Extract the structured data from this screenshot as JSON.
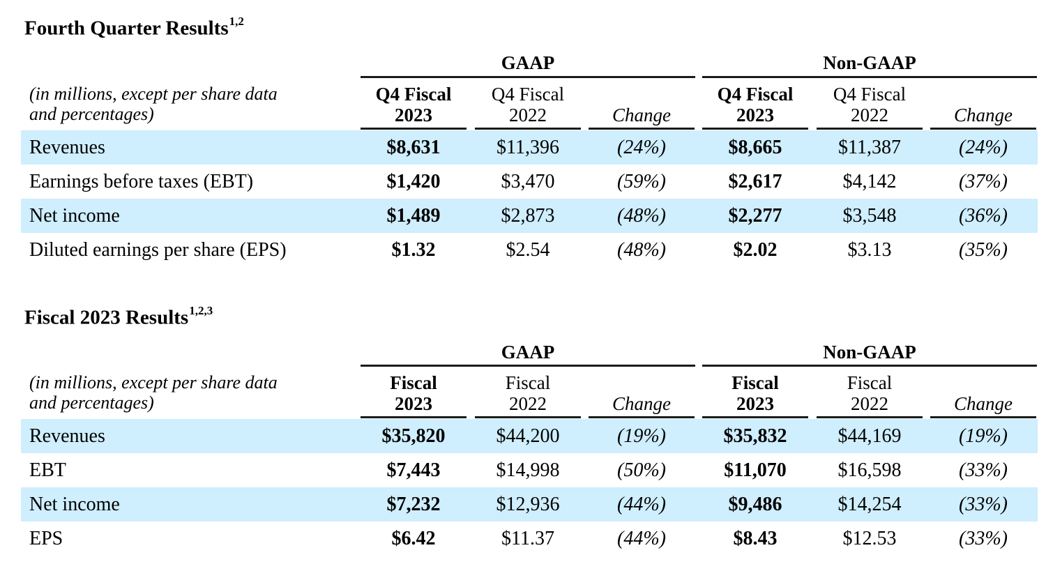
{
  "sections": [
    {
      "title": "Fourth Quarter Results",
      "footnotes": "1,2",
      "description_line1": "(in millions, except per share data",
      "description_line2": "and percentages)",
      "groups": {
        "gaap": "GAAP",
        "non_gaap": "Non-GAAP"
      },
      "headers": {
        "gaap_current": {
          "line1": "Q4 Fiscal",
          "line2": "2023"
        },
        "gaap_prior": {
          "line1": "Q4 Fiscal",
          "line2": "2022"
        },
        "gaap_change": {
          "line1": "",
          "line2": "Change"
        },
        "ng_current": {
          "line1": "Q4 Fiscal",
          "line2": "2023"
        },
        "ng_prior": {
          "line1": "Q4 Fiscal",
          "line2": "2022"
        },
        "ng_change": {
          "line1": "",
          "line2": "Change"
        }
      },
      "rows": [
        {
          "label": "Revenues",
          "gaap_current": "$8,631",
          "gaap_prior": "$11,396",
          "gaap_change": "(24%)",
          "ng_current": "$8,665",
          "ng_prior": "$11,387",
          "ng_change": "(24%)"
        },
        {
          "label": "Earnings before taxes (EBT)",
          "gaap_current": "$1,420",
          "gaap_prior": "$3,470",
          "gaap_change": "(59%)",
          "ng_current": "$2,617",
          "ng_prior": "$4,142",
          "ng_change": "(37%)"
        },
        {
          "label": "Net income",
          "gaap_current": "$1,489",
          "gaap_prior": "$2,873",
          "gaap_change": "(48%)",
          "ng_current": "$2,277",
          "ng_prior": "$3,548",
          "ng_change": "(36%)"
        },
        {
          "label": "Diluted earnings per share (EPS)",
          "gaap_current": "$1.32",
          "gaap_prior": "$2.54",
          "gaap_change": "(48%)",
          "ng_current": "$2.02",
          "ng_prior": "$3.13",
          "ng_change": "(35%)"
        }
      ]
    },
    {
      "title": "Fiscal 2023 Results",
      "footnotes": "1,2,3",
      "description_line1": "(in millions, except per share data",
      "description_line2": "and percentages)",
      "groups": {
        "gaap": "GAAP",
        "non_gaap": "Non-GAAP"
      },
      "headers": {
        "gaap_current": {
          "line1": "Fiscal",
          "line2": "2023"
        },
        "gaap_prior": {
          "line1": "Fiscal",
          "line2": "2022"
        },
        "gaap_change": {
          "line1": "",
          "line2": "Change"
        },
        "ng_current": {
          "line1": "Fiscal",
          "line2": "2023"
        },
        "ng_prior": {
          "line1": "Fiscal",
          "line2": "2022"
        },
        "ng_change": {
          "line1": "",
          "line2": "Change"
        }
      },
      "rows": [
        {
          "label": "Revenues",
          "gaap_current": "$35,820",
          "gaap_prior": "$44,200",
          "gaap_change": "(19%)",
          "ng_current": "$35,832",
          "ng_prior": "$44,169",
          "ng_change": "(19%)"
        },
        {
          "label": "EBT",
          "gaap_current": "$7,443",
          "gaap_prior": "$14,998",
          "gaap_change": "(50%)",
          "ng_current": "$11,070",
          "ng_prior": "$16,598",
          "ng_change": "(33%)"
        },
        {
          "label": "Net income",
          "gaap_current": "$7,232",
          "gaap_prior": "$12,936",
          "gaap_change": "(44%)",
          "ng_current": "$9,486",
          "ng_prior": "$14,254",
          "ng_change": "(33%)"
        },
        {
          "label": "EPS",
          "gaap_current": "$6.42",
          "gaap_prior": "$11.37",
          "gaap_change": "(44%)",
          "ng_current": "$8.43",
          "ng_prior": "$12.53",
          "ng_change": "(33%)"
        }
      ]
    }
  ]
}
